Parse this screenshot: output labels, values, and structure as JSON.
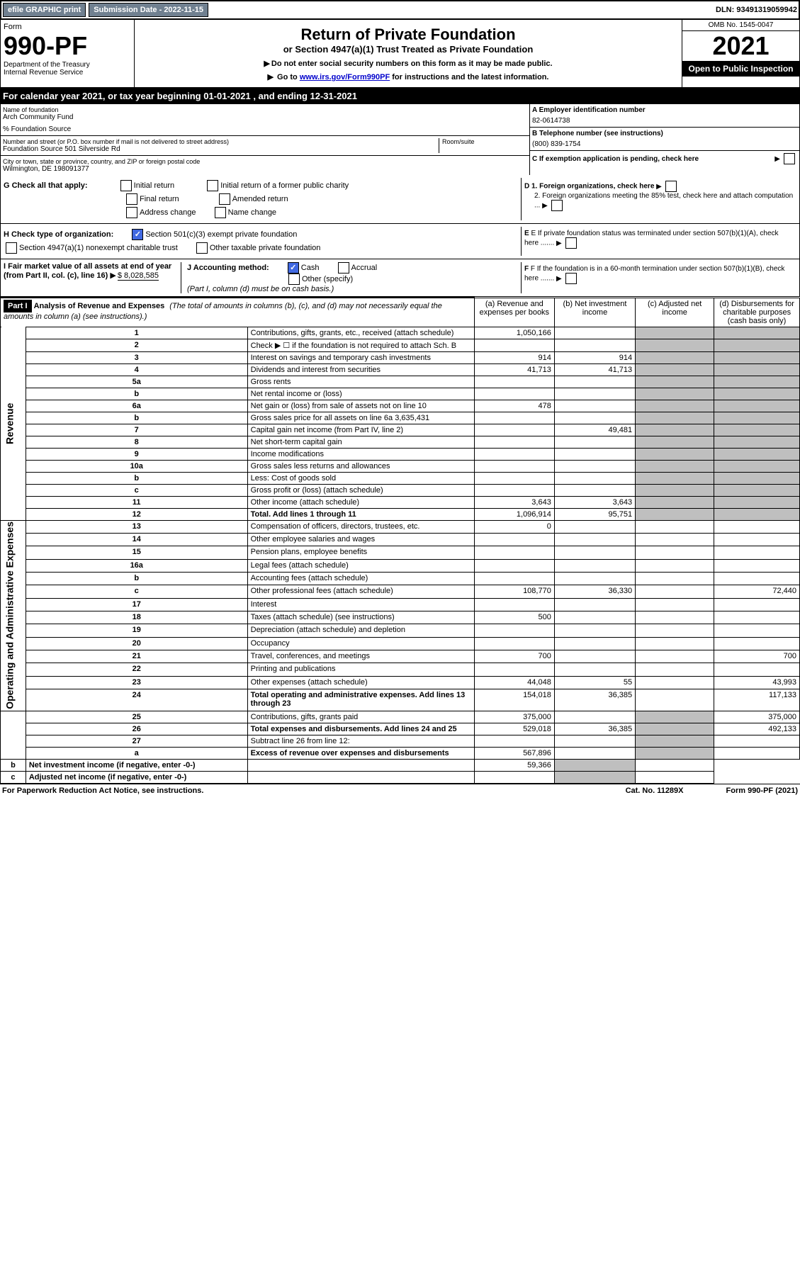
{
  "header": {
    "efile": "efile GRAPHIC print",
    "submission": "Submission Date - 2022-11-15",
    "dln": "DLN: 93491319059942"
  },
  "form": {
    "label": "Form",
    "number": "990-PF",
    "dept": "Department of the Treasury",
    "irs": "Internal Revenue Service",
    "title": "Return of Private Foundation",
    "subtitle": "or Section 4947(a)(1) Trust Treated as Private Foundation",
    "instr1": "Do not enter social security numbers on this form as it may be made public.",
    "instr2_pre": "Go to ",
    "instr2_link": "www.irs.gov/Form990PF",
    "instr2_post": " for instructions and the latest information.",
    "omb": "OMB No. 1545-0047",
    "year": "2021",
    "open": "Open to Public Inspection"
  },
  "cal": {
    "text": "For calendar year 2021, or tax year beginning 01-01-2021                        , and ending 12-31-2021"
  },
  "entity": {
    "name_lbl": "Name of foundation",
    "name": "Arch Community Fund",
    "care": "% Foundation Source",
    "addr_lbl": "Number and street (or P.O. box number if mail is not delivered to street address)",
    "addr": "Foundation Source 501 Silverside Rd",
    "room_lbl": "Room/suite",
    "city_lbl": "City or town, state or province, country, and ZIP or foreign postal code",
    "city": "Wilmington, DE  198091377",
    "ein_lbl": "A Employer identification number",
    "ein": "82-0614738",
    "phone_lbl": "B Telephone number (see instructions)",
    "phone": "(800) 839-1754",
    "c_lbl": "C If exemption application is pending, check here"
  },
  "checks": {
    "g_lbl": "G Check all that apply:",
    "g1": "Initial return",
    "g2": "Initial return of a former public charity",
    "g3": "Final return",
    "g4": "Amended return",
    "g5": "Address change",
    "g6": "Name change",
    "h_lbl": "H Check type of organization:",
    "h1": "Section 501(c)(3) exempt private foundation",
    "h2": "Section 4947(a)(1) nonexempt charitable trust",
    "h3": "Other taxable private foundation",
    "i_lbl": "I Fair market value of all assets at end of year (from Part II, col. (c), line 16)",
    "i_val": "$  8,028,585",
    "j_lbl": "J Accounting method:",
    "j1": "Cash",
    "j2": "Accrual",
    "j3": "Other (specify)",
    "j_note": "(Part I, column (d) must be on cash basis.)",
    "d1": "D 1. Foreign organizations, check here",
    "d2": "2. Foreign organizations meeting the 85% test, check here and attach computation ...",
    "e": "E  If private foundation status was terminated under section 507(b)(1)(A), check here .......",
    "f": "F  If the foundation is in a 60-month termination under section 507(b)(1)(B), check here ......."
  },
  "part1": {
    "hdr": "Part I",
    "title": "Analysis of Revenue and Expenses",
    "note": "(The total of amounts in columns (b), (c), and (d) may not necessarily equal the amounts in column (a) (see instructions).)",
    "col_a": "(a) Revenue and expenses per books",
    "col_b": "(b) Net investment income",
    "col_c": "(c) Adjusted net income",
    "col_d": "(d) Disbursements for charitable purposes (cash basis only)"
  },
  "sides": {
    "rev": "Revenue",
    "exp": "Operating and Administrative Expenses"
  },
  "rows": [
    {
      "n": "1",
      "d": "Contributions, gifts, grants, etc., received (attach schedule)",
      "a": "1,050,166"
    },
    {
      "n": "2",
      "d": "Check ▶ ☐ if the foundation is not required to attach Sch. B"
    },
    {
      "n": "3",
      "d": "Interest on savings and temporary cash investments",
      "a": "914",
      "b": "914"
    },
    {
      "n": "4",
      "d": "Dividends and interest from securities",
      "a": "41,713",
      "b": "41,713"
    },
    {
      "n": "5a",
      "d": "Gross rents"
    },
    {
      "n": "b",
      "d": "Net rental income or (loss)"
    },
    {
      "n": "6a",
      "d": "Net gain or (loss) from sale of assets not on line 10",
      "a": "478"
    },
    {
      "n": "b",
      "d": "Gross sales price for all assets on line 6a         3,635,431"
    },
    {
      "n": "7",
      "d": "Capital gain net income (from Part IV, line 2)",
      "b": "49,481"
    },
    {
      "n": "8",
      "d": "Net short-term capital gain"
    },
    {
      "n": "9",
      "d": "Income modifications"
    },
    {
      "n": "10a",
      "d": "Gross sales less returns and allowances"
    },
    {
      "n": "b",
      "d": "Less: Cost of goods sold"
    },
    {
      "n": "c",
      "d": "Gross profit or (loss) (attach schedule)"
    },
    {
      "n": "11",
      "d": "Other income (attach schedule)",
      "a": "3,643",
      "b": "3,643"
    },
    {
      "n": "12",
      "d": "Total. Add lines 1 through 11",
      "a": "1,096,914",
      "b": "95,751",
      "bold": true
    },
    {
      "n": "13",
      "d": "Compensation of officers, directors, trustees, etc.",
      "a": "0"
    },
    {
      "n": "14",
      "d": "Other employee salaries and wages"
    },
    {
      "n": "15",
      "d": "Pension plans, employee benefits"
    },
    {
      "n": "16a",
      "d": "Legal fees (attach schedule)"
    },
    {
      "n": "b",
      "d": "Accounting fees (attach schedule)"
    },
    {
      "n": "c",
      "d": "Other professional fees (attach schedule)",
      "a": "108,770",
      "b": "36,330",
      "dd": "72,440"
    },
    {
      "n": "17",
      "d": "Interest"
    },
    {
      "n": "18",
      "d": "Taxes (attach schedule) (see instructions)",
      "a": "500"
    },
    {
      "n": "19",
      "d": "Depreciation (attach schedule) and depletion"
    },
    {
      "n": "20",
      "d": "Occupancy"
    },
    {
      "n": "21",
      "d": "Travel, conferences, and meetings",
      "a": "700",
      "dd": "700"
    },
    {
      "n": "22",
      "d": "Printing and publications"
    },
    {
      "n": "23",
      "d": "Other expenses (attach schedule)",
      "a": "44,048",
      "b": "55",
      "dd": "43,993"
    },
    {
      "n": "24",
      "d": "Total operating and administrative expenses. Add lines 13 through 23",
      "a": "154,018",
      "b": "36,385",
      "dd": "117,133",
      "bold": true
    },
    {
      "n": "25",
      "d": "Contributions, gifts, grants paid",
      "a": "375,000",
      "dd": "375,000"
    },
    {
      "n": "26",
      "d": "Total expenses and disbursements. Add lines 24 and 25",
      "a": "529,018",
      "b": "36,385",
      "dd": "492,133",
      "bold": true
    },
    {
      "n": "27",
      "d": "Subtract line 26 from line 12:"
    },
    {
      "n": "a",
      "d": "Excess of revenue over expenses and disbursements",
      "a": "567,896",
      "bold": true
    },
    {
      "n": "b",
      "d": "Net investment income (if negative, enter -0-)",
      "b": "59,366",
      "bold": true
    },
    {
      "n": "c",
      "d": "Adjusted net income (if negative, enter -0-)",
      "bold": true
    }
  ],
  "footer": {
    "left": "For Paperwork Reduction Act Notice, see instructions.",
    "mid": "Cat. No. 11289X",
    "right": "Form 990-PF (2021)"
  }
}
